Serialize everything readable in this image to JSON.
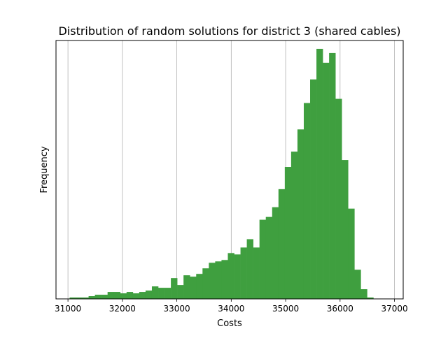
{
  "chart_data": {
    "type": "bar",
    "title": "Distribution of random solutions for district 3 (shared cables)",
    "xlabel": "Costs",
    "ylabel": "Frequency",
    "xlim": [
      30780,
      37160
    ],
    "ylim": [
      0,
      186
    ],
    "xticks": [
      31000,
      32000,
      33000,
      34000,
      35000,
      36000,
      37000
    ],
    "xtick_labels": [
      "31000",
      "32000",
      "33000",
      "34000",
      "35000",
      "36000",
      "37000"
    ],
    "grid": "vertical",
    "bar_color": "#3f9f3f",
    "bin_start": 31030,
    "bin_width": 116.3,
    "values": [
      1,
      1,
      1,
      2,
      3,
      3,
      5,
      5,
      4,
      5,
      4,
      5,
      6,
      9,
      8,
      8,
      15,
      10,
      17,
      16,
      18,
      22,
      26,
      27,
      28,
      33,
      32,
      37,
      43,
      37,
      57,
      59,
      66,
      79,
      95,
      106,
      122,
      141,
      158,
      180,
      170,
      177,
      144,
      100,
      65,
      21,
      7,
      1,
      0
    ]
  }
}
